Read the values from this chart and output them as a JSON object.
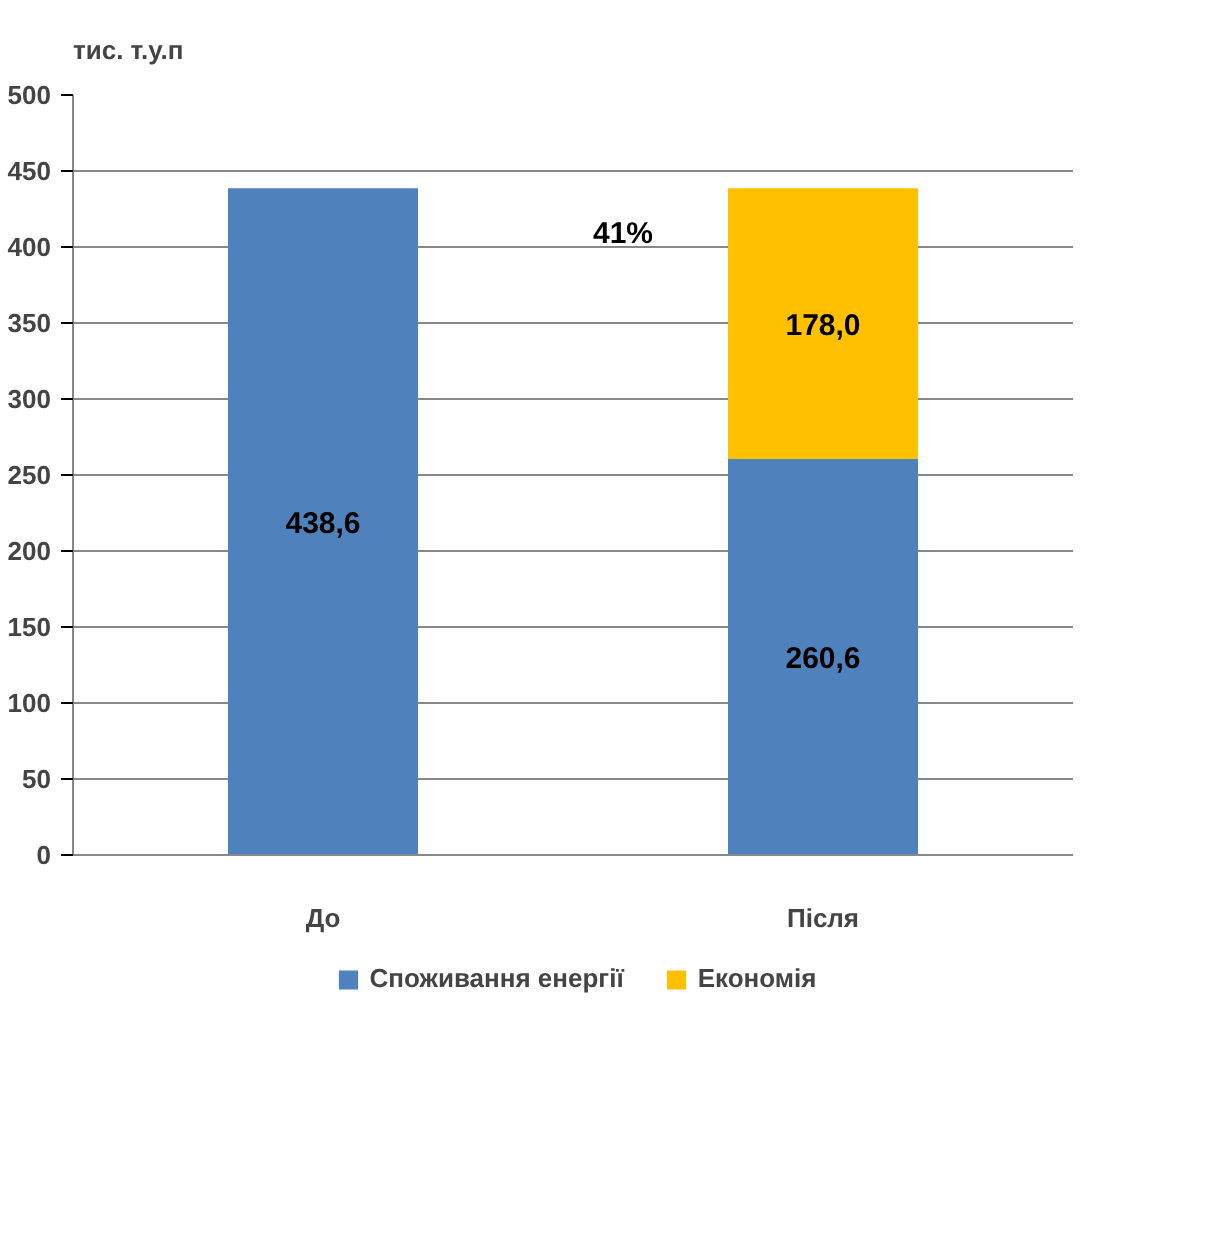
{
  "chart_data": {
    "type": "bar",
    "stacked": true,
    "ylabel": "тис. т.у.п",
    "categories": [
      "До",
      "Після"
    ],
    "series": [
      {
        "name": "Споживання енергії",
        "color": "#4f81bd",
        "values": [
          438.6,
          260.6
        ],
        "value_labels": [
          "438,6",
          "260,6"
        ]
      },
      {
        "name": "Економія",
        "color": "#ffc000",
        "values": [
          null,
          178.0
        ],
        "value_labels": [
          null,
          "178,0"
        ]
      }
    ],
    "annotations": [
      "41%"
    ],
    "ylim": [
      0,
      500
    ],
    "yticks": [
      0,
      50,
      100,
      150,
      200,
      250,
      300,
      350,
      400,
      450,
      500
    ],
    "grid": "y",
    "legend": "bottom"
  }
}
